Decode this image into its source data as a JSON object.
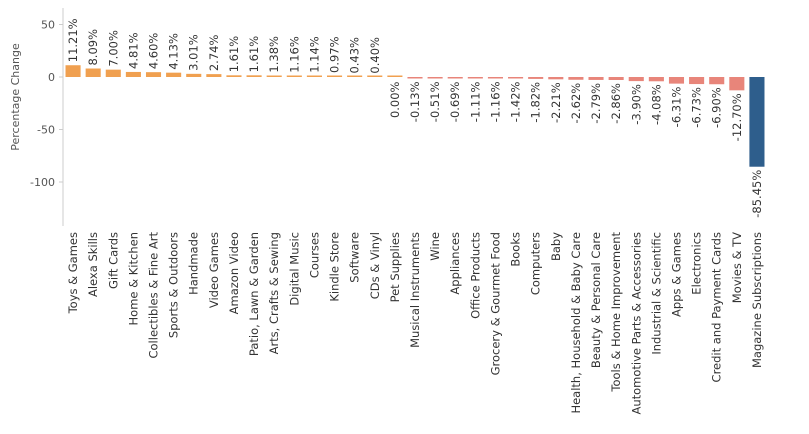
{
  "chart_data": {
    "type": "bar",
    "ylabel": "Percentage Change",
    "ylim": [
      -140,
      60
    ],
    "yticks": [
      50,
      0,
      -50,
      -100
    ],
    "grid": false,
    "categories": [
      "Toys & Games",
      "Alexa Skills",
      "Gift Cards",
      "Home & Kitchen",
      "Collectibles & Fine Art",
      "Sports & Outdoors",
      "Handmade",
      "Video Games",
      "Amazon Video",
      "Patio, Lawn & Garden",
      "Arts, Crafts & Sewing",
      "Digital Music",
      "Courses",
      "Kindle Store",
      "Software",
      "CDs & Vinyl",
      "Pet Supplies",
      "Musical Instruments",
      "Wine",
      "Appliances",
      "Office Products",
      "Grocery & Gourmet Food",
      "Books",
      "Computers",
      "Baby",
      "Health, Household & Baby Care",
      "Beauty & Personal Care",
      "Tools & Home Improvement",
      "Automotive Parts & Accessories",
      "Industrial & Scientific",
      "Apps & Games",
      "Electronics",
      "Credit and Payment Cards",
      "Movies & TV",
      "Magazine Subscriptions"
    ],
    "values": [
      11.21,
      8.09,
      7.0,
      4.81,
      4.6,
      4.13,
      3.01,
      2.74,
      1.61,
      1.61,
      1.38,
      1.16,
      1.14,
      0.97,
      0.43,
      0.4,
      0.0,
      -0.13,
      -0.51,
      -0.69,
      -1.11,
      -1.16,
      -1.42,
      -1.82,
      -2.21,
      -2.62,
      -2.79,
      -2.86,
      -3.9,
      -4.08,
      -6.31,
      -6.73,
      -6.9,
      -12.7,
      -85.45
    ],
    "value_labels": [
      "11.21%",
      "8.09%",
      "7.00%",
      "4.81%",
      "4.60%",
      "4.13%",
      "3.01%",
      "2.74%",
      "1.61%",
      "1.61%",
      "1.38%",
      "1.16%",
      "1.14%",
      "0.97%",
      "0.43%",
      "0.40%",
      "0.00%",
      "-0.13%",
      "-0.51%",
      "-0.69%",
      "-1.11%",
      "-1.16%",
      "-1.42%",
      "-1.82%",
      "-2.21%",
      "-2.62%",
      "-2.79%",
      "-2.86%",
      "-3.90%",
      "-4.08%",
      "-6.31%",
      "-6.73%",
      "-6.90%",
      "-12.70%",
      "-85.45%"
    ],
    "colors": {
      "positive": "#f0a050",
      "negative": "#e8857a",
      "extreme": "#2e5e8c",
      "axis": "#cccccc"
    }
  }
}
